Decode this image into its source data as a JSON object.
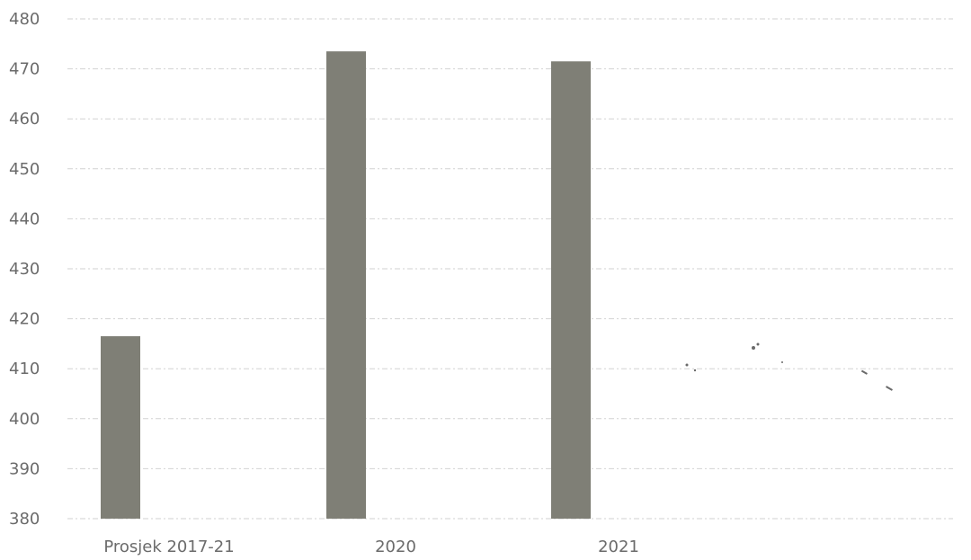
{
  "chart_data": {
    "type": "bar",
    "title": "",
    "xlabel": "",
    "ylabel": "",
    "categories": [
      "Prosjek 2017-21",
      "2020",
      "2021"
    ],
    "values": [
      416.5,
      473.5,
      471.5
    ],
    "ylim": [
      380,
      480
    ],
    "yticks": [
      380,
      390,
      400,
      410,
      420,
      430,
      440,
      450,
      460,
      470,
      480
    ],
    "grid": true,
    "legend": "none",
    "colors": {
      "bar": "#7f7f76",
      "grid": "#d2d2d2",
      "text": "#6b6b6b"
    }
  }
}
